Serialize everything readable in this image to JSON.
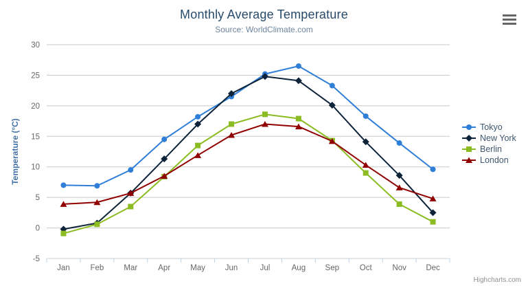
{
  "chart": {
    "credits_label": "Highcharts.com",
    "context_menu_icon": "hamburger-icon"
  },
  "chart_data": {
    "type": "line",
    "title": "Monthly Average Temperature",
    "subtitle": "Source: WorldClimate.com",
    "xlabel": "",
    "ylabel": "Temperature (°C)",
    "ylim": [
      -5,
      30
    ],
    "yticks": [
      -5,
      0,
      5,
      10,
      15,
      20,
      25,
      30
    ],
    "grid": true,
    "legend_position": "right",
    "categories": [
      "Jan",
      "Feb",
      "Mar",
      "Apr",
      "May",
      "Jun",
      "Jul",
      "Aug",
      "Sep",
      "Oct",
      "Nov",
      "Dec"
    ],
    "series": [
      {
        "name": "Tokyo",
        "color": "#2f7ed8",
        "marker": "circle",
        "values": [
          7.0,
          6.9,
          9.5,
          14.5,
          18.2,
          21.5,
          25.2,
          26.5,
          23.3,
          18.3,
          13.9,
          9.6
        ]
      },
      {
        "name": "New York",
        "color": "#0d233a",
        "marker": "diamond",
        "values": [
          -0.2,
          0.8,
          5.7,
          11.3,
          17.0,
          22.0,
          24.8,
          24.1,
          20.1,
          14.1,
          8.6,
          2.5
        ]
      },
      {
        "name": "Berlin",
        "color": "#8bbc21",
        "marker": "square",
        "values": [
          -0.9,
          0.6,
          3.5,
          8.4,
          13.5,
          17.0,
          18.6,
          17.9,
          14.3,
          9.0,
          3.9,
          1.0
        ]
      },
      {
        "name": "London",
        "color": "#910000",
        "marker": "triangle",
        "values": [
          3.9,
          4.2,
          5.7,
          8.5,
          11.9,
          15.2,
          17.0,
          16.6,
          14.2,
          10.3,
          6.6,
          4.8
        ]
      }
    ],
    "style": {
      "grid_color": "#c8c8c8",
      "axis_line_color": "#c0d0e0",
      "tick_label_color": "#666666",
      "axis_title_color": "#4572a7"
    }
  }
}
